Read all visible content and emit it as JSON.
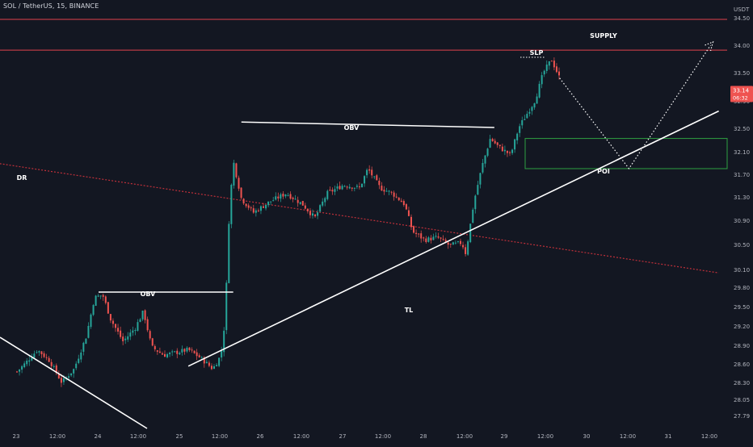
{
  "header": {
    "symbol_line": "SOL / TetherUS, 15, BINANCE"
  },
  "axis": {
    "currency": "USDT",
    "last_price": "33.14",
    "countdown": "06:32"
  },
  "colors": {
    "background": "#131722",
    "axis_text": "#b2b5be",
    "up_candle": "#26a69a",
    "down_candle": "#ef5350",
    "supply_line": "#e0424c",
    "dr_line": "#c0303a",
    "annotation_white": "#ffffff",
    "poi_box": "#2ea043",
    "price_tag": "#ef5350"
  },
  "chart_data": {
    "type": "line",
    "title": "SOL / TetherUS, 15, BINANCE",
    "y_tick_labels": [
      "34.50",
      "34.00",
      "33.50",
      "32.90",
      "32.50",
      "32.10",
      "31.70",
      "31.30",
      "30.90",
      "30.50",
      "30.10",
      "29.80",
      "29.50",
      "29.20",
      "28.90",
      "28.60",
      "28.30",
      "28.05",
      "27.79"
    ],
    "x_tick_labels": [
      "23",
      "12:00",
      "24",
      "12:00",
      "25",
      "12:00",
      "26",
      "12:00",
      "27",
      "12:00",
      "28",
      "12:00",
      "29",
      "12:00",
      "30",
      "12:00",
      "31",
      "12:00"
    ],
    "ylim": [
      27.7,
      34.75
    ],
    "price_path": [
      [
        23.0,
        28.05
      ],
      [
        23.1,
        28.2
      ],
      [
        23.25,
        28.45
      ],
      [
        23.4,
        28.25
      ],
      [
        23.55,
        27.85
      ],
      [
        23.7,
        28.1
      ],
      [
        23.85,
        28.7
      ],
      [
        23.95,
        29.4
      ],
      [
        24.05,
        29.45
      ],
      [
        24.15,
        29.0
      ],
      [
        24.3,
        28.6
      ],
      [
        24.45,
        28.85
      ],
      [
        24.55,
        29.15
      ],
      [
        24.65,
        28.5
      ],
      [
        24.8,
        28.35
      ],
      [
        24.95,
        28.4
      ],
      [
        25.1,
        28.45
      ],
      [
        25.25,
        28.3
      ],
      [
        25.4,
        28.1
      ],
      [
        25.5,
        28.35
      ],
      [
        25.55,
        29.0
      ],
      [
        25.6,
        30.9
      ],
      [
        25.65,
        31.9
      ],
      [
        25.75,
        31.2
      ],
      [
        25.9,
        30.95
      ],
      [
        26.1,
        31.15
      ],
      [
        26.3,
        31.3
      ],
      [
        26.5,
        31.1
      ],
      [
        26.65,
        30.85
      ],
      [
        26.8,
        31.3
      ],
      [
        27.0,
        31.45
      ],
      [
        27.2,
        31.4
      ],
      [
        27.3,
        31.75
      ],
      [
        27.45,
        31.4
      ],
      [
        27.6,
        31.3
      ],
      [
        27.75,
        31.1
      ],
      [
        27.85,
        30.6
      ],
      [
        28.0,
        30.45
      ],
      [
        28.15,
        30.5
      ],
      [
        28.3,
        30.35
      ],
      [
        28.45,
        30.4
      ],
      [
        28.5,
        30.2
      ],
      [
        28.6,
        31.15
      ],
      [
        28.7,
        31.8
      ],
      [
        28.8,
        32.3
      ],
      [
        28.9,
        32.15
      ],
      [
        29.05,
        32.0
      ],
      [
        29.15,
        32.5
      ],
      [
        29.25,
        32.75
      ],
      [
        29.35,
        33.0
      ],
      [
        29.45,
        33.5
      ],
      [
        29.55,
        33.74
      ],
      [
        29.65,
        33.4
      ]
    ],
    "horizontal_levels": [
      {
        "label": "SUPPLY",
        "y": 34.47
      },
      {
        "label": "SUPPLY",
        "y": 33.91
      }
    ],
    "annotations": [
      {
        "label": "OBV",
        "from": [
          24.0,
          29.5
        ],
        "to": [
          25.65,
          29.5
        ]
      },
      {
        "label": "OBV",
        "from": [
          25.75,
          32.6
        ],
        "to": [
          28.85,
          32.5
        ]
      },
      {
        "label": "TL",
        "from": [
          25.1,
          28.15
        ],
        "to": [
          31.6,
          32.8
        ]
      },
      {
        "label": "DR",
        "from": [
          22.75,
          31.85
        ],
        "to": [
          31.6,
          29.85
        ]
      },
      {
        "label": "SLP",
        "y": 33.78
      },
      {
        "label": "POI",
        "zone": [
          31.75,
          32.3
        ]
      }
    ],
    "projection": [
      [
        29.65,
        33.4
      ],
      [
        30.5,
        31.75
      ],
      [
        31.5,
        34.0
      ]
    ],
    "current_price": 33.14,
    "legend": "none",
    "grid": false
  }
}
